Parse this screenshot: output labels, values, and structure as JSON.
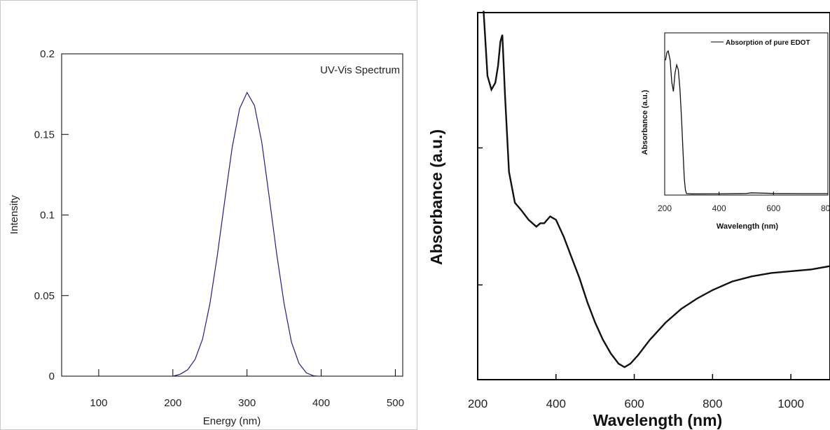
{
  "chart_data": [
    {
      "type": "line",
      "title": "",
      "xlabel": "Energy (nm)",
      "ylabel": "Intensity",
      "xlim": [
        50,
        510
      ],
      "ylim": [
        0,
        0.2
      ],
      "x_ticks": [
        100,
        200,
        300,
        400,
        500
      ],
      "y_ticks": [
        0,
        0.05,
        0.1,
        0.15,
        0.2
      ],
      "y_tick_labels": [
        "0",
        "0.05",
        "0.1",
        "0.15",
        "0.2"
      ],
      "legend_text": "UV-Vis Spectrum",
      "legend_position": "top-right",
      "line_color": "#1f1f7a",
      "series": [
        {
          "name": "UV-Vis Spectrum",
          "x": [
            200,
            210,
            220,
            230,
            240,
            250,
            260,
            270,
            280,
            290,
            300,
            310,
            320,
            330,
            340,
            350,
            360,
            370,
            380,
            390,
            395
          ],
          "y": [
            0.0,
            0.0012,
            0.004,
            0.0105,
            0.023,
            0.045,
            0.075,
            0.109,
            0.142,
            0.166,
            0.176,
            0.168,
            0.145,
            0.111,
            0.076,
            0.045,
            0.021,
            0.008,
            0.002,
            0.0002,
            0.0
          ]
        }
      ]
    },
    {
      "type": "line",
      "title": "",
      "xlabel": "Wavelength (nm)",
      "ylabel": "Absorbance (a.u.)",
      "xlim": [
        200,
        1100
      ],
      "ylim": [
        0,
        1
      ],
      "x_ticks": [
        200,
        400,
        600,
        800,
        1000
      ],
      "y_tick_labels": [],
      "line_color": "#111111",
      "series": [
        {
          "name": "",
          "x": [
            215,
            225,
            235,
            245,
            252,
            258,
            263,
            270,
            280,
            295,
            310,
            330,
            350,
            360,
            370,
            385,
            400,
            420,
            440,
            460,
            480,
            500,
            520,
            540,
            560,
            575,
            590,
            610,
            640,
            680,
            720,
            760,
            800,
            850,
            900,
            950,
            1000,
            1050,
            1100
          ],
          "y": [
            1.05,
            0.86,
            0.82,
            0.84,
            0.89,
            0.96,
            0.98,
            0.8,
            0.58,
            0.49,
            0.47,
            0.44,
            0.42,
            0.43,
            0.43,
            0.45,
            0.44,
            0.39,
            0.33,
            0.27,
            0.2,
            0.14,
            0.09,
            0.05,
            0.02,
            0.01,
            0.02,
            0.045,
            0.09,
            0.14,
            0.18,
            0.21,
            0.235,
            0.26,
            0.275,
            0.285,
            0.29,
            0.295,
            0.305
          ]
        }
      ],
      "inset": {
        "type": "line",
        "xlabel": "Wavelength (nm)",
        "ylabel": "Absorbance (a.u.)",
        "xlim": [
          200,
          800
        ],
        "ylim": [
          0,
          1
        ],
        "x_ticks": [
          200,
          400,
          600,
          800
        ],
        "legend_text": "Absorption of pure EDOT",
        "legend_position": "top-right",
        "series": [
          {
            "name": "Absorption of pure EDOT",
            "x": [
              203,
              208,
              213,
              220,
              226,
              232,
              238,
              244,
              250,
              256,
              262,
              268,
              272,
              276,
              280,
              300,
              400,
              500,
              520,
              600,
              700,
              800
            ],
            "y": [
              0.86,
              0.91,
              0.92,
              0.86,
              0.72,
              0.66,
              0.78,
              0.83,
              0.8,
              0.68,
              0.48,
              0.25,
              0.1,
              0.03,
              0.005,
              0.003,
              0.004,
              0.006,
              0.01,
              0.006,
              0.005,
              0.005
            ]
          }
        ]
      }
    }
  ]
}
